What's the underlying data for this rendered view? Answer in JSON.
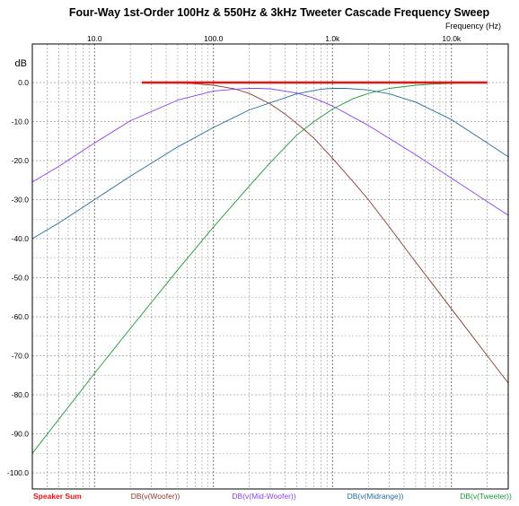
{
  "chart_data": {
    "type": "line",
    "title": "Four-Way 1st-Order 100Hz & 550Hz & 3kHz Tweeter Cascade Frequency Sweep",
    "xlabel": "Frequency   (Hz)",
    "ylabel": "dB",
    "x_scale": "log",
    "xlim": [
      3,
      30000
    ],
    "ylim": [
      -100,
      0
    ],
    "grid": true,
    "legend_position": "bottom",
    "x_tick_labels": [
      "10.0",
      "100.0",
      "1.0k",
      "10.0k"
    ],
    "y_tick_labels": [
      "0.0",
      "-10.0",
      "-20.0",
      "-30.0",
      "-40.0",
      "-50.0",
      "-60.0",
      "-70.0",
      "-80.0",
      "-90.0",
      "-100.0"
    ],
    "colors": {
      "Speaker Sum": "#ee1111",
      "DB(v(Woofer))": "#8b3a2a",
      "DB(v(Mid-Woofer))": "#8a40ee",
      "DB(v(Midrange))": "#1f6f9f",
      "DB(v(Tweeter))": "#1a9a3a"
    },
    "series": [
      {
        "name": "Speaker Sum",
        "x": [
          25,
          50,
          100,
          200,
          500,
          1000,
          2000,
          5000,
          10000,
          20000
        ],
        "y": [
          0,
          0,
          0,
          0,
          0,
          0,
          0,
          0,
          0,
          0
        ]
      },
      {
        "name": "DB(v(Woofer))",
        "x": [
          25,
          50,
          70,
          100,
          150,
          200,
          300,
          400,
          550,
          700,
          1000,
          1500,
          2000,
          3000,
          5000,
          7000,
          10000,
          15000,
          20000,
          30000
        ],
        "y": [
          0,
          -0.1,
          -0.3,
          -0.7,
          -1.6,
          -2.8,
          -5.5,
          -8.1,
          -11.5,
          -14.3,
          -19.4,
          -25.5,
          -30.0,
          -37.0,
          -46.0,
          -51.8,
          -58.0,
          -65.0,
          -70.0,
          -77.0
        ]
      },
      {
        "name": "DB(v(Mid-Woofer))",
        "x": [
          3,
          5,
          10,
          20,
          50,
          100,
          150,
          200,
          235,
          300,
          500,
          700,
          1000,
          2000,
          3000,
          5000,
          10000,
          20000,
          30000
        ],
        "y": [
          -25.5,
          -21.5,
          -15.5,
          -9.8,
          -4.5,
          -2.2,
          -1.7,
          -1.5,
          -1.5,
          -1.6,
          -2.7,
          -4.0,
          -6.0,
          -11.0,
          -14.3,
          -18.5,
          -24.5,
          -30.5,
          -34.0
        ]
      },
      {
        "name": "DB(v(Midrange))",
        "x": [
          3,
          5,
          10,
          20,
          50,
          100,
          200,
          500,
          800,
          1000,
          1300,
          2000,
          3000,
          5000,
          10000,
          20000,
          30000
        ],
        "y": [
          -40.0,
          -36.0,
          -30.0,
          -24.0,
          -16.5,
          -11.5,
          -7.0,
          -2.9,
          -1.7,
          -1.5,
          -1.5,
          -1.9,
          -2.9,
          -5.0,
          -9.5,
          -15.5,
          -19.0
        ]
      },
      {
        "name": "DB(v(Tweeter))",
        "x": [
          3,
          10,
          20,
          50,
          100,
          200,
          300,
          500,
          700,
          1000,
          1500,
          2000,
          3000,
          5000,
          7000,
          10000,
          15000,
          20000
        ],
        "y": [
          -95.0,
          -74.5,
          -63.0,
          -48.0,
          -37.0,
          -26.5,
          -20.5,
          -13.5,
          -10.0,
          -6.8,
          -4.1,
          -2.8,
          -1.5,
          -0.7,
          -0.4,
          -0.2,
          -0.1,
          -0.1
        ]
      }
    ]
  }
}
